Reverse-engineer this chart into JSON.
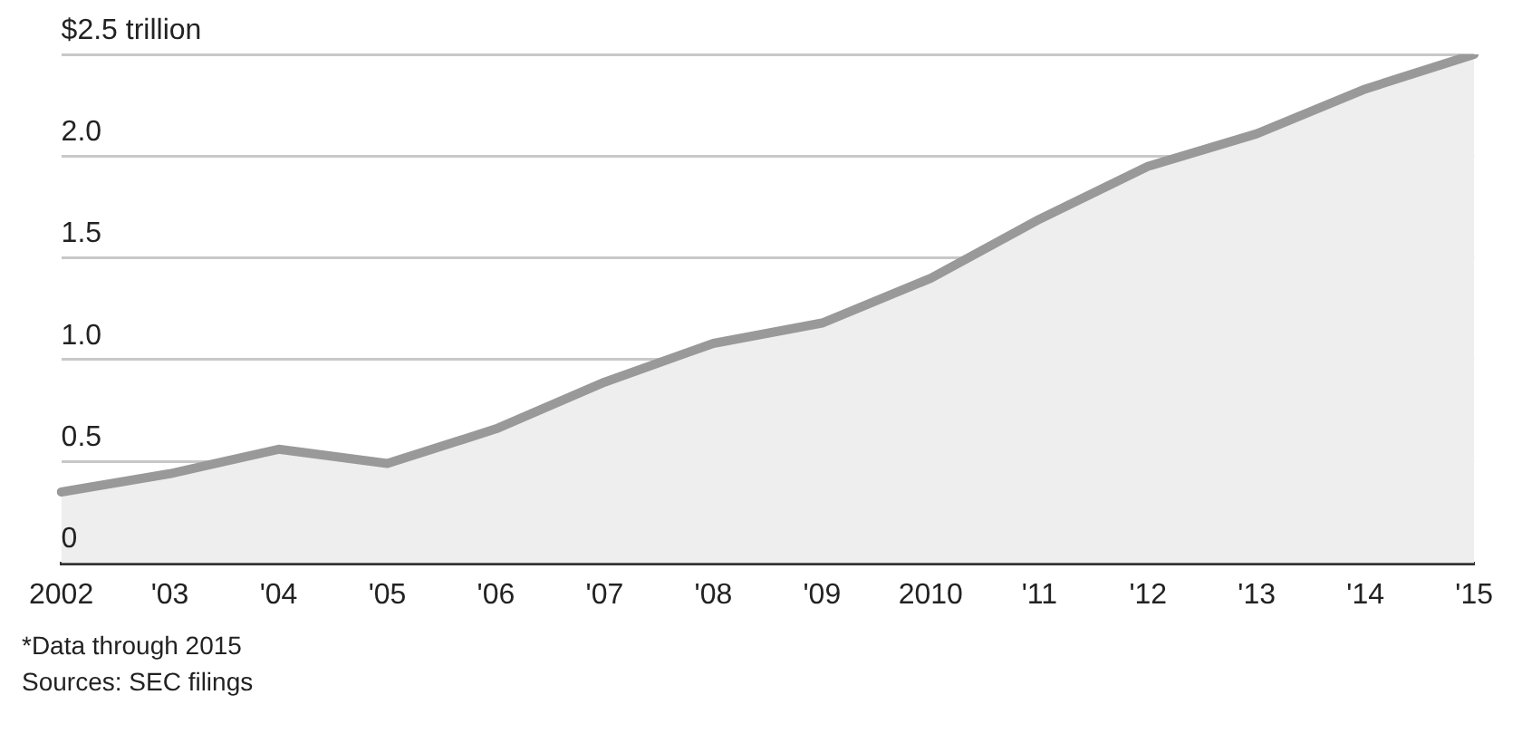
{
  "chart_data": {
    "type": "area",
    "categories": [
      "2002",
      "'03",
      "'04",
      "'05",
      "'06",
      "'07",
      "'08",
      "'09",
      "2010",
      "'11",
      "'12",
      "'13",
      "'14",
      "'15"
    ],
    "series": [
      {
        "color": "#999999",
        "values": [
          0.35,
          0.44,
          0.56,
          0.49,
          0.66,
          0.89,
          1.08,
          1.18,
          1.4,
          1.69,
          1.95,
          2.11,
          2.33,
          2.5
        ]
      }
    ],
    "ylim": [
      0,
      2.5
    ],
    "yticks": [
      {
        "value": 0,
        "label": "0"
      },
      {
        "value": 0.5,
        "label": "0.5"
      },
      {
        "value": 1,
        "label": "1.0"
      },
      {
        "value": 1.5,
        "label": "1.5"
      },
      {
        "value": 2,
        "label": "2.0"
      },
      {
        "value": 2.5,
        "label": "$2.5 trillion"
      }
    ],
    "grid": "y",
    "annotations": [
      "*Data through 2015",
      "Sources: SEC filings"
    ]
  }
}
